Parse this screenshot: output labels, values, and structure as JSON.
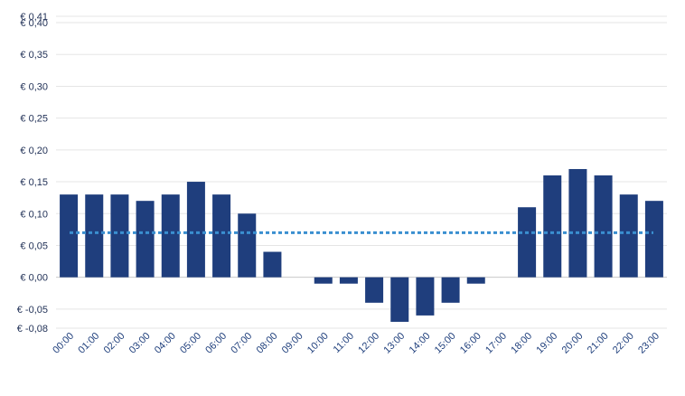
{
  "colors": {
    "bar": "#1f3e7d",
    "average_line": "#3a8fd0",
    "grid": "#e5e5e5",
    "axis": "#c8c8c8",
    "ytick_text": "#1f2f55",
    "xtick_text": "#1f3f7c"
  },
  "chart_data": {
    "type": "bar",
    "title": "",
    "xlabel": "",
    "ylabel": "",
    "categories": [
      "00:00",
      "01:00",
      "02:00",
      "03:00",
      "04:00",
      "05:00",
      "06:00",
      "07:00",
      "08:00",
      "09:00",
      "10:00",
      "11:00",
      "12:00",
      "13:00",
      "14:00",
      "15:00",
      "16:00",
      "17:00",
      "18:00",
      "19:00",
      "20:00",
      "21:00",
      "22:00",
      "23:00"
    ],
    "values": [
      0.13,
      0.13,
      0.13,
      0.12,
      0.13,
      0.15,
      0.13,
      0.1,
      0.04,
      0,
      -0.01,
      -0.01,
      -0.04,
      -0.07,
      -0.06,
      -0.04,
      -0.01,
      0,
      0.11,
      0.16,
      0.17,
      0.16,
      0.13,
      0.12
    ],
    "average": 0.07,
    "ylim": [
      -0.08,
      0.41
    ],
    "yticks": [
      {
        "value": 0.41,
        "label": "€ 0,41"
      },
      {
        "value": 0.4,
        "label": "€ 0,40"
      },
      {
        "value": 0.35,
        "label": "€ 0,35"
      },
      {
        "value": 0.3,
        "label": "€ 0,30"
      },
      {
        "value": 0.25,
        "label": "€ 0,25"
      },
      {
        "value": 0.2,
        "label": "€ 0,20"
      },
      {
        "value": 0.15,
        "label": "€ 0,15"
      },
      {
        "value": 0.1,
        "label": "€ 0,10"
      },
      {
        "value": 0.05,
        "label": "€ 0,05"
      },
      {
        "value": 0.0,
        "label": "€ 0,00"
      },
      {
        "value": -0.05,
        "label": "€ -0,05"
      },
      {
        "value": -0.08,
        "label": "€ -0,08"
      }
    ],
    "grid": true,
    "legend": "none"
  }
}
